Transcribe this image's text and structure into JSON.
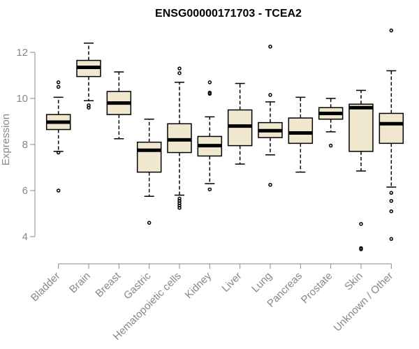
{
  "chart_data": {
    "type": "box",
    "title": "ENSG00000171703 - TCEA2",
    "xlabel": "",
    "ylabel": "Expression",
    "ylim": [
      3.0,
      13.0
    ],
    "yticks": [
      4,
      6,
      8,
      10,
      12
    ],
    "colors": {
      "box_fill": "#efe8cf",
      "stroke": "#000000",
      "axis": "#888888",
      "median": "#000000"
    },
    "categories": [
      "Bladder",
      "Brain",
      "Breast",
      "Gastric",
      "Hematopoietic cells",
      "Kidney",
      "Liver",
      "Lung",
      "Pancreas",
      "Prostate",
      "Skin",
      "Unknown / Other"
    ],
    "boxes": [
      {
        "category": "Bladder",
        "whisker_low": 7.7,
        "q1": 8.65,
        "median": 8.97,
        "q3": 9.3,
        "whisker_high": 10.05,
        "outliers": [
          6.0,
          7.65,
          10.5,
          10.7
        ]
      },
      {
        "category": "Brain",
        "whisker_low": 9.9,
        "q1": 10.95,
        "median": 11.35,
        "q3": 11.65,
        "whisker_high": 12.4,
        "outliers": [
          9.6,
          9.7
        ]
      },
      {
        "category": "Breast",
        "whisker_low": 8.25,
        "q1": 9.3,
        "median": 9.8,
        "q3": 10.3,
        "whisker_high": 11.15,
        "outliers": []
      },
      {
        "category": "Gastric",
        "whisker_low": 5.75,
        "q1": 6.8,
        "median": 7.75,
        "q3": 8.1,
        "whisker_high": 9.1,
        "outliers": [
          4.6
        ]
      },
      {
        "category": "Hematopoietic cells",
        "whisker_low": 5.8,
        "q1": 7.65,
        "median": 8.2,
        "q3": 8.9,
        "whisker_high": 10.7,
        "outliers": [
          5.25,
          5.35,
          5.45,
          5.55,
          5.65,
          11.1,
          11.3
        ]
      },
      {
        "category": "Kidney",
        "whisker_low": 6.3,
        "q1": 7.5,
        "median": 7.95,
        "q3": 8.35,
        "whisker_high": 9.2,
        "outliers": [
          6.05,
          10.2,
          10.25,
          10.7
        ]
      },
      {
        "category": "Liver",
        "whisker_low": 7.15,
        "q1": 7.95,
        "median": 8.8,
        "q3": 9.5,
        "whisker_high": 10.65,
        "outliers": []
      },
      {
        "category": "Lung",
        "whisker_low": 7.55,
        "q1": 8.3,
        "median": 8.6,
        "q3": 8.95,
        "whisker_high": 9.85,
        "outliers": [
          6.25,
          10.15,
          12.25
        ]
      },
      {
        "category": "Pancreas",
        "whisker_low": 6.8,
        "q1": 8.05,
        "median": 8.5,
        "q3": 9.15,
        "whisker_high": 10.05,
        "outliers": []
      },
      {
        "category": "Prostate",
        "whisker_low": 8.55,
        "q1": 9.1,
        "median": 9.35,
        "q3": 9.6,
        "whisker_high": 10.0,
        "outliers": [
          7.95
        ]
      },
      {
        "category": "Skin",
        "whisker_low": 6.85,
        "q1": 7.7,
        "median": 9.6,
        "q3": 9.75,
        "whisker_high": 10.35,
        "outliers": [
          3.45,
          3.5,
          4.55
        ]
      },
      {
        "category": "Unknown / Other",
        "whisker_low": 6.15,
        "q1": 8.05,
        "median": 8.9,
        "q3": 9.35,
        "whisker_high": 11.2,
        "outliers": [
          3.9,
          5.1,
          5.55,
          5.9,
          12.95
        ]
      }
    ]
  }
}
